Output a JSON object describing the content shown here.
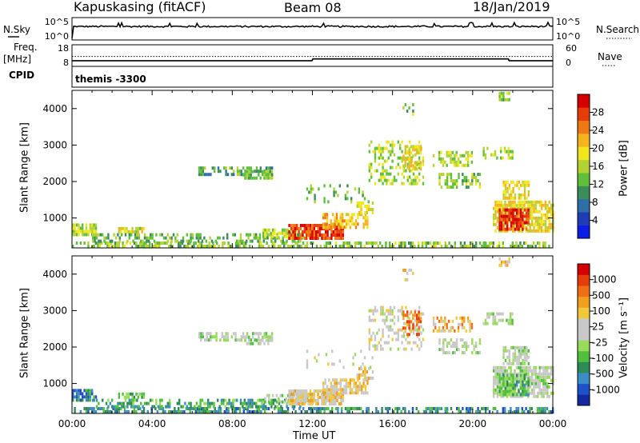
{
  "header": {
    "station": "Kapuskasing (fitACF)",
    "beam": "Beam 08",
    "date": "18/Jan/2019"
  },
  "left_labels": {
    "nsky": "N.Sky",
    "freq": "Freq.",
    "freq_unit": "[MHz]",
    "cpid": "CPID"
  },
  "right_labels": {
    "nsearch": "N.Search",
    "nave": "Nave"
  },
  "cpid_text": "themis -3300",
  "chart_data": [
    {
      "type": "line",
      "name": "noise-panel",
      "left_axis": {
        "ticks": [
          "10^5",
          "10^0"
        ],
        "scale": "log"
      },
      "right_axis": {
        "ticks": [
          "10^5",
          "10^0"
        ],
        "scale": "log"
      },
      "series": [
        {
          "name": "N.Sky",
          "style": "solid",
          "level_log10": 3.1
        },
        {
          "name": "N.Search",
          "style": "dotted"
        }
      ]
    },
    {
      "type": "line",
      "name": "frequency-panel",
      "left_axis": {
        "ticks": [
          "18",
          "8"
        ],
        "range": [
          8,
          18
        ]
      },
      "right_axis": {
        "ticks": [
          "60",
          "0"
        ],
        "range": [
          0,
          60
        ]
      },
      "series": [
        {
          "name": "Freq.",
          "style": "solid",
          "steps": [
            {
              "start_h": 0.0,
              "end_h": 12.0,
              "value": 10.2
            },
            {
              "start_h": 12.0,
              "end_h": 21.8,
              "value": 11.2
            },
            {
              "start_h": 21.8,
              "end_h": 24.0,
              "value": 10.2
            }
          ]
        },
        {
          "name": "Nave",
          "style": "dotted",
          "value": 27
        }
      ]
    },
    {
      "type": "heatmap",
      "name": "power-panel",
      "xlabel": "",
      "ylabel": "Slant Range [km]",
      "xlim": [
        0,
        24
      ],
      "ylim": [
        180,
        4500
      ],
      "yticks": [
        "1000",
        "2000",
        "3000",
        "4000"
      ],
      "colorbar": {
        "label": "Power [dB]",
        "ticks": [
          "28",
          "24",
          "20",
          "16",
          "12",
          "8",
          "4"
        ],
        "colors": [
          "#0a1ee6",
          "#1e3cb4",
          "#2e6fa8",
          "#3c8c5a",
          "#5fbf3a",
          "#b4d232",
          "#f0e61e",
          "#f5b41e",
          "#f07814",
          "#e63c0a",
          "#d70000"
        ]
      },
      "clusters": [
        {
          "t": [
            0.0,
            24.0
          ],
          "r": [
            180,
            320
          ],
          "value": 0.45,
          "density": 0.55
        },
        {
          "t": [
            0.0,
            1.2
          ],
          "r": [
            500,
            800
          ],
          "value": 0.5,
          "density": 0.8
        },
        {
          "t": [
            2.3,
            3.6
          ],
          "r": [
            580,
            720
          ],
          "value": 0.55,
          "density": 0.7
        },
        {
          "t": [
            1.0,
            11.5
          ],
          "r": [
            320,
            500
          ],
          "value": 0.4,
          "density": 0.45
        },
        {
          "t": [
            9.5,
            12.0
          ],
          "r": [
            450,
            700
          ],
          "value": 0.5,
          "density": 0.6
        },
        {
          "t": [
            10.8,
            13.5
          ],
          "r": [
            400,
            780
          ],
          "value": 0.85,
          "density": 0.85
        },
        {
          "t": [
            12.5,
            14.8
          ],
          "r": [
            700,
            1100
          ],
          "value": 0.65,
          "density": 0.7
        },
        {
          "t": [
            14.2,
            15.0
          ],
          "r": [
            1100,
            1450
          ],
          "value": 0.55,
          "density": 0.6
        },
        {
          "t": [
            6.3,
            10.0
          ],
          "r": [
            2150,
            2350
          ],
          "value": 0.35,
          "density": 0.6
        },
        {
          "t": [
            8.5,
            10.0
          ],
          "r": [
            2050,
            2250
          ],
          "value": 0.4,
          "density": 0.6
        },
        {
          "t": [
            14.8,
            17.5
          ],
          "r": [
            1900,
            3100
          ],
          "value": 0.5,
          "density": 0.35
        },
        {
          "t": [
            16.5,
            17.4
          ],
          "r": [
            2300,
            3000
          ],
          "value": 0.6,
          "density": 0.55
        },
        {
          "t": [
            18.0,
            20.0
          ],
          "r": [
            2400,
            2800
          ],
          "value": 0.5,
          "density": 0.45
        },
        {
          "t": [
            18.3,
            20.5
          ],
          "r": [
            1800,
            2200
          ],
          "value": 0.45,
          "density": 0.4
        },
        {
          "t": [
            20.5,
            22.0
          ],
          "r": [
            2600,
            2900
          ],
          "value": 0.5,
          "density": 0.5
        },
        {
          "t": [
            21.0,
            24.0
          ],
          "r": [
            600,
            1400
          ],
          "value": 0.6,
          "density": 0.75
        },
        {
          "t": [
            21.3,
            22.8
          ],
          "r": [
            650,
            1250
          ],
          "value": 0.9,
          "density": 0.85
        },
        {
          "t": [
            21.5,
            22.8
          ],
          "r": [
            1500,
            2000
          ],
          "value": 0.6,
          "density": 0.7
        },
        {
          "t": [
            16.5,
            17.0
          ],
          "r": [
            3800,
            4100
          ],
          "value": 0.45,
          "density": 0.3
        },
        {
          "t": [
            21.3,
            21.8
          ],
          "r": [
            4200,
            4450
          ],
          "value": 0.45,
          "density": 0.7
        },
        {
          "t": [
            11.5,
            15.0
          ],
          "r": [
            1400,
            1900
          ],
          "value": 0.4,
          "density": 0.15
        }
      ]
    },
    {
      "type": "heatmap",
      "name": "velocity-panel",
      "xlabel": "Time UT",
      "ylabel": "Slant Range [km]",
      "xlim": [
        0,
        24
      ],
      "ylim": [
        180,
        4500
      ],
      "xticks": [
        "00:00",
        "04:00",
        "08:00",
        "12:00",
        "16:00",
        "20:00",
        "00:00"
      ],
      "yticks": [
        "1000",
        "2000",
        "3000",
        "4000"
      ],
      "colorbar": {
        "label": "Velocity [m s⁻¹]",
        "ticks": [
          "1000",
          "500",
          "100",
          "25",
          "-25",
          "-100",
          "-500",
          "-1000"
        ],
        "colors": [
          "#1428a0",
          "#1e50c8",
          "#3c8cc8",
          "#2e8b57",
          "#50c03c",
          "#96dc5a",
          "#c8c8c8",
          "#c8c8c8",
          "#f0c83c",
          "#f0a01e",
          "#f06e14",
          "#e63c0a",
          "#d70000"
        ]
      },
      "clusters": [
        {
          "t": [
            0.0,
            24.0
          ],
          "r": [
            180,
            320
          ],
          "value": 0.25,
          "density": 0.55
        },
        {
          "t": [
            0.0,
            1.2
          ],
          "r": [
            500,
            800
          ],
          "value": 0.2,
          "density": 0.8
        },
        {
          "t": [
            2.3,
            3.6
          ],
          "r": [
            580,
            720
          ],
          "value": 0.35,
          "density": 0.7
        },
        {
          "t": [
            1.0,
            11.5
          ],
          "r": [
            320,
            500
          ],
          "value": 0.3,
          "density": 0.45
        },
        {
          "t": [
            9.5,
            12.0
          ],
          "r": [
            450,
            700
          ],
          "value": 0.45,
          "density": 0.6
        },
        {
          "t": [
            10.8,
            13.5
          ],
          "r": [
            400,
            780
          ],
          "value": 0.62,
          "density": 0.85
        },
        {
          "t": [
            12.5,
            14.8
          ],
          "r": [
            700,
            1100
          ],
          "value": 0.62,
          "density": 0.7
        },
        {
          "t": [
            14.2,
            15.0
          ],
          "r": [
            1100,
            1450
          ],
          "value": 0.65,
          "density": 0.6
        },
        {
          "t": [
            6.3,
            10.0
          ],
          "r": [
            2150,
            2350
          ],
          "value": 0.47,
          "density": 0.6
        },
        {
          "t": [
            8.5,
            10.0
          ],
          "r": [
            2050,
            2250
          ],
          "value": 0.47,
          "density": 0.6
        },
        {
          "t": [
            14.8,
            17.5
          ],
          "r": [
            1900,
            3100
          ],
          "value": 0.55,
          "density": 0.35
        },
        {
          "t": [
            16.5,
            17.4
          ],
          "r": [
            2300,
            3000
          ],
          "value": 0.8,
          "density": 0.55
        },
        {
          "t": [
            18.0,
            20.0
          ],
          "r": [
            2400,
            2800
          ],
          "value": 0.7,
          "density": 0.45
        },
        {
          "t": [
            18.3,
            20.5
          ],
          "r": [
            1800,
            2200
          ],
          "value": 0.48,
          "density": 0.4
        },
        {
          "t": [
            20.5,
            22.0
          ],
          "r": [
            2600,
            2900
          ],
          "value": 0.48,
          "density": 0.5
        },
        {
          "t": [
            21.0,
            24.0
          ],
          "r": [
            600,
            1400
          ],
          "value": 0.48,
          "density": 0.75
        },
        {
          "t": [
            21.3,
            22.8
          ],
          "r": [
            650,
            1250
          ],
          "value": 0.35,
          "density": 0.85
        },
        {
          "t": [
            21.5,
            22.8
          ],
          "r": [
            1500,
            2000
          ],
          "value": 0.48,
          "density": 0.7
        },
        {
          "t": [
            16.5,
            17.0
          ],
          "r": [
            3800,
            4100
          ],
          "value": 0.62,
          "density": 0.3
        },
        {
          "t": [
            21.3,
            21.8
          ],
          "r": [
            4200,
            4450
          ],
          "value": 0.62,
          "density": 0.7
        },
        {
          "t": [
            11.5,
            15.0
          ],
          "r": [
            1400,
            1900
          ],
          "value": 0.5,
          "density": 0.15
        }
      ]
    }
  ]
}
